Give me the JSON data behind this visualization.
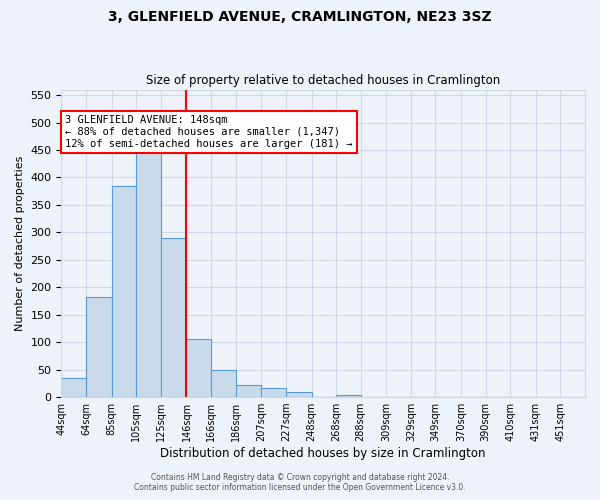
{
  "title": "3, GLENFIELD AVENUE, CRAMLINGTON, NE23 3SZ",
  "subtitle": "Size of property relative to detached houses in Cramlington",
  "xlabel": "Distribution of detached houses by size in Cramlington",
  "ylabel": "Number of detached properties",
  "footer_line1": "Contains HM Land Registry data © Crown copyright and database right 2024.",
  "footer_line2": "Contains public sector information licensed under the Open Government Licence v3.0.",
  "annotation_title": "3 GLENFIELD AVENUE: 148sqm",
  "annotation_line1": "← 88% of detached houses are smaller (1,347)",
  "annotation_line2": "12% of semi-detached houses are larger (181) →",
  "bar_left_edges": [
    44,
    64,
    85,
    105,
    125,
    146,
    166,
    186,
    207,
    227,
    248,
    268,
    288,
    309,
    329,
    349,
    370,
    390,
    410,
    431
  ],
  "bar_widths": [
    20,
    21,
    20,
    20,
    21,
    20,
    20,
    21,
    20,
    21,
    20,
    20,
    21,
    20,
    20,
    21,
    20,
    20,
    21,
    20
  ],
  "bar_heights": [
    35,
    183,
    385,
    456,
    290,
    105,
    49,
    22,
    17,
    10,
    0,
    3,
    0,
    1,
    0,
    0,
    1,
    0,
    1,
    1
  ],
  "tick_labels": [
    "44sqm",
    "64sqm",
    "85sqm",
    "105sqm",
    "125sqm",
    "146sqm",
    "166sqm",
    "186sqm",
    "207sqm",
    "227sqm",
    "248sqm",
    "268sqm",
    "288sqm",
    "309sqm",
    "329sqm",
    "349sqm",
    "370sqm",
    "390sqm",
    "410sqm",
    "431sqm",
    "451sqm"
  ],
  "tick_positions": [
    44,
    64,
    85,
    105,
    125,
    146,
    166,
    186,
    207,
    227,
    248,
    268,
    288,
    309,
    329,
    349,
    370,
    390,
    410,
    431,
    451
  ],
  "bar_color": "#c9daea",
  "bar_edge_color": "#5b9bd5",
  "grid_color": "#d0d8e8",
  "vline_x": 146,
  "vline_color": "red",
  "ylim": [
    0,
    560
  ],
  "yticks": [
    0,
    50,
    100,
    150,
    200,
    250,
    300,
    350,
    400,
    450,
    500,
    550
  ],
  "annotation_box_color": "white",
  "annotation_box_edge": "red",
  "bg_color": "#eef2f9",
  "xlim_left": 44,
  "xlim_right": 471
}
